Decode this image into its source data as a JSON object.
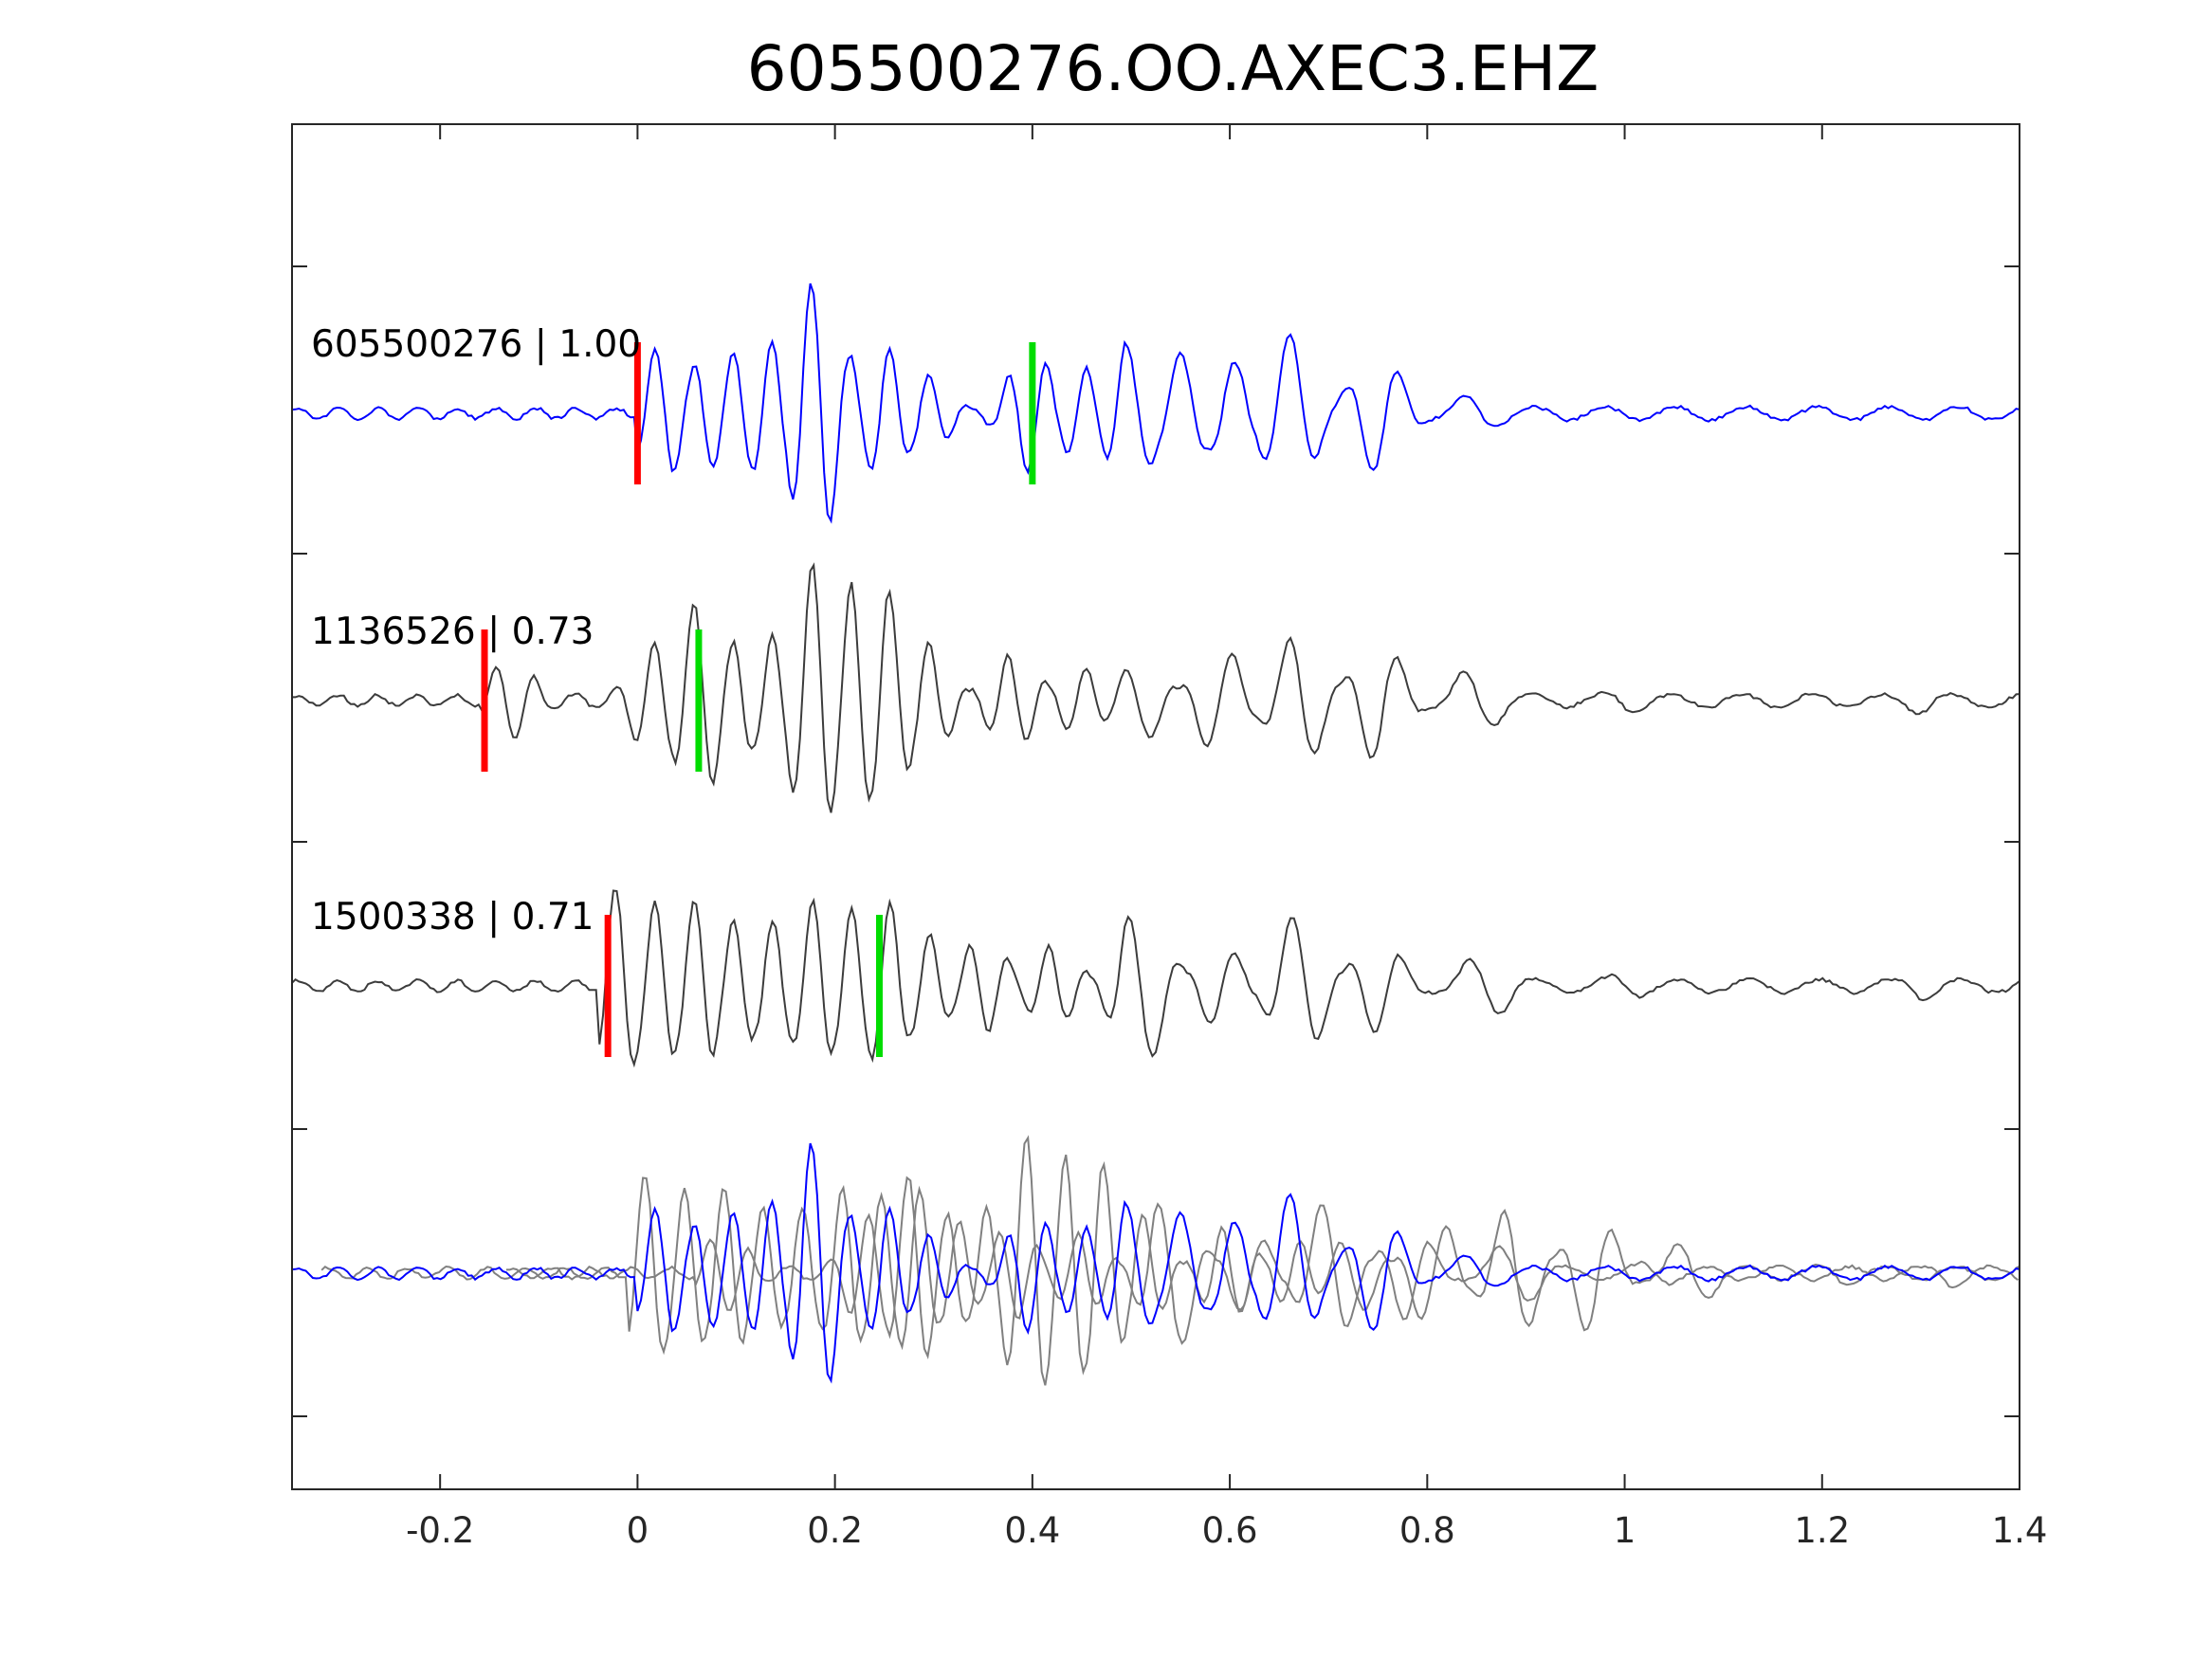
{
  "chart_data": {
    "type": "line",
    "title": "605500276.OO.AXEC3.EHZ",
    "xlabel": "",
    "ylabel": "",
    "xlim": [
      -0.35,
      1.4
    ],
    "x_ticks": [
      -0.2,
      0,
      0.2,
      0.4,
      0.6,
      0.8,
      1,
      1.2,
      1.4
    ],
    "x_tick_labels": [
      "-0.2",
      "0",
      "0.2",
      "0.4",
      "0.6",
      "0.8",
      "1",
      "1.2",
      "1.4"
    ],
    "grid": false,
    "traces": [
      {
        "label": "605500276 | 1.00",
        "color": "#0000ff",
        "p_pick": 0.0,
        "s_pick": 0.4,
        "onset": 0.0,
        "peaks": [
          [
            0.025,
            1.0
          ],
          [
            0.07,
            0.85
          ],
          [
            0.1,
            0.95
          ],
          [
            0.135,
            1.1
          ],
          [
            0.18,
            2.0
          ],
          [
            0.21,
            0.9
          ],
          [
            0.25,
            1.0
          ],
          [
            0.29,
            0.6
          ],
          [
            0.4,
            0.9
          ],
          [
            0.45,
            0.7
          ],
          [
            0.5,
            1.1
          ],
          [
            0.55,
            0.9
          ],
          [
            0.6,
            0.8
          ],
          [
            0.66,
            1.2
          ],
          [
            0.75,
            0.9
          ],
          [
            0.85,
            0.3
          ],
          [
            1.0,
            0.1
          ],
          [
            1.3,
            0.1
          ]
        ]
      },
      {
        "label": "1136526 | 0.73",
        "color": "#3c3c3c",
        "p_pick": -0.155,
        "s_pick": 0.062,
        "onset": -0.16,
        "peaks": [
          [
            -0.13,
            0.6
          ],
          [
            0.02,
            0.9
          ],
          [
            0.062,
            1.5
          ],
          [
            0.1,
            0.9
          ],
          [
            0.14,
            1.0
          ],
          [
            0.18,
            2.1
          ],
          [
            0.22,
            1.8
          ],
          [
            0.25,
            1.7
          ],
          [
            0.29,
            0.9
          ],
          [
            0.38,
            0.7
          ],
          [
            0.45,
            0.5
          ],
          [
            0.51,
            0.6
          ],
          [
            0.59,
            0.8
          ],
          [
            0.67,
            1.0
          ],
          [
            0.75,
            0.9
          ],
          [
            0.85,
            0.5
          ],
          [
            1.0,
            0.2
          ],
          [
            1.3,
            0.2
          ]
        ]
      },
      {
        "label": "1500338 | 0.71",
        "color": "#3c3c3c",
        "p_pick": -0.03,
        "s_pick": 0.245,
        "onset": -0.04,
        "peaks": [
          [
            -0.02,
            1.5
          ],
          [
            0.02,
            1.3
          ],
          [
            0.06,
            1.3
          ],
          [
            0.1,
            1.0
          ],
          [
            0.14,
            1.0
          ],
          [
            0.18,
            1.3
          ],
          [
            0.22,
            1.2
          ],
          [
            0.25,
            1.3
          ],
          [
            0.29,
            0.8
          ],
          [
            0.35,
            0.7
          ],
          [
            0.42,
            0.6
          ],
          [
            0.51,
            1.2
          ],
          [
            0.59,
            0.6
          ],
          [
            0.67,
            1.1
          ],
          [
            0.75,
            0.7
          ],
          [
            0.86,
            0.5
          ],
          [
            1.0,
            0.2
          ],
          [
            1.3,
            0.2
          ]
        ]
      }
    ],
    "overlay": {
      "colors": [
        "#808080",
        "#0000ff"
      ],
      "shifts": [
        0.217,
        0.03
      ]
    },
    "pick_colors": {
      "p": "#ff0000",
      "s": "#00dd00"
    }
  }
}
